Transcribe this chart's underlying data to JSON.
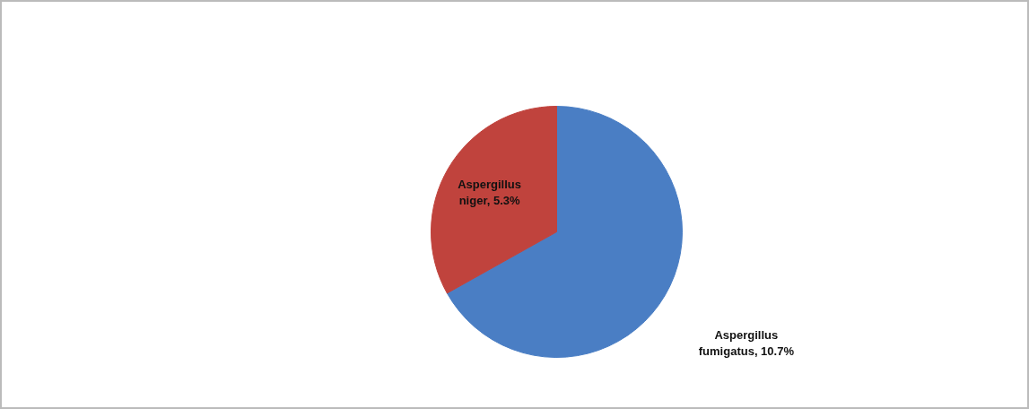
{
  "chart_data": {
    "type": "pie",
    "categories": [
      "Aspergillus fumigatus",
      "Aspergillus niger"
    ],
    "values": [
      10.7,
      5.3
    ],
    "value_labels": [
      "10.7%",
      "5.3%"
    ],
    "colors": [
      "#4a7ec4",
      "#c0433d"
    ]
  }
}
